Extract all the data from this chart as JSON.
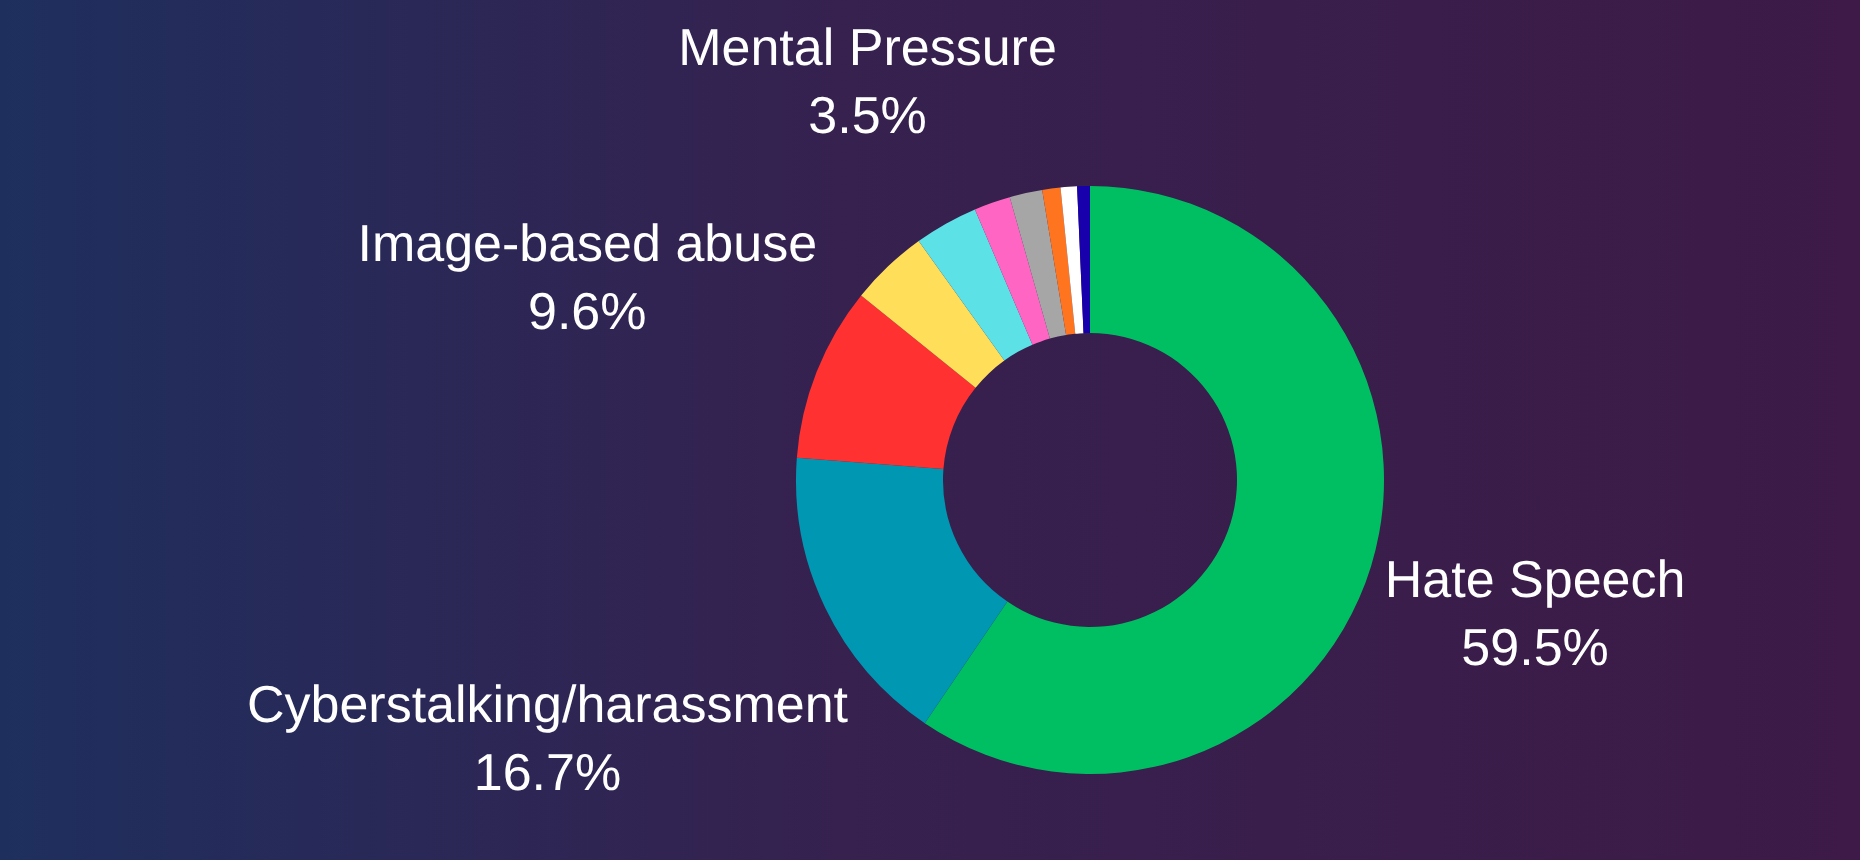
{
  "chart_data": {
    "type": "donut",
    "categories": [
      "Hate Speech",
      "Cyberstalking/harassment",
      "Image-based abuse",
      null,
      "Mental Pressure",
      null,
      null,
      null,
      null,
      null
    ],
    "values": [
      59.5,
      16.7,
      9.6,
      4.3,
      3.5,
      2.0,
      1.8,
      1.0,
      0.9,
      0.7
    ],
    "value_labels": [
      "59.5%",
      "16.7%",
      "9.6%",
      null,
      "3.5%",
      null,
      null,
      null,
      null,
      null
    ],
    "colors": [
      "#00bf63",
      "#0097b2",
      "#ff3131",
      "#ffde59",
      "#5ce1e6",
      "#ff66c4",
      "#a6a6a6",
      "#ff751f",
      "#ffffff",
      "#1800ad"
    ],
    "legend": false
  }
}
